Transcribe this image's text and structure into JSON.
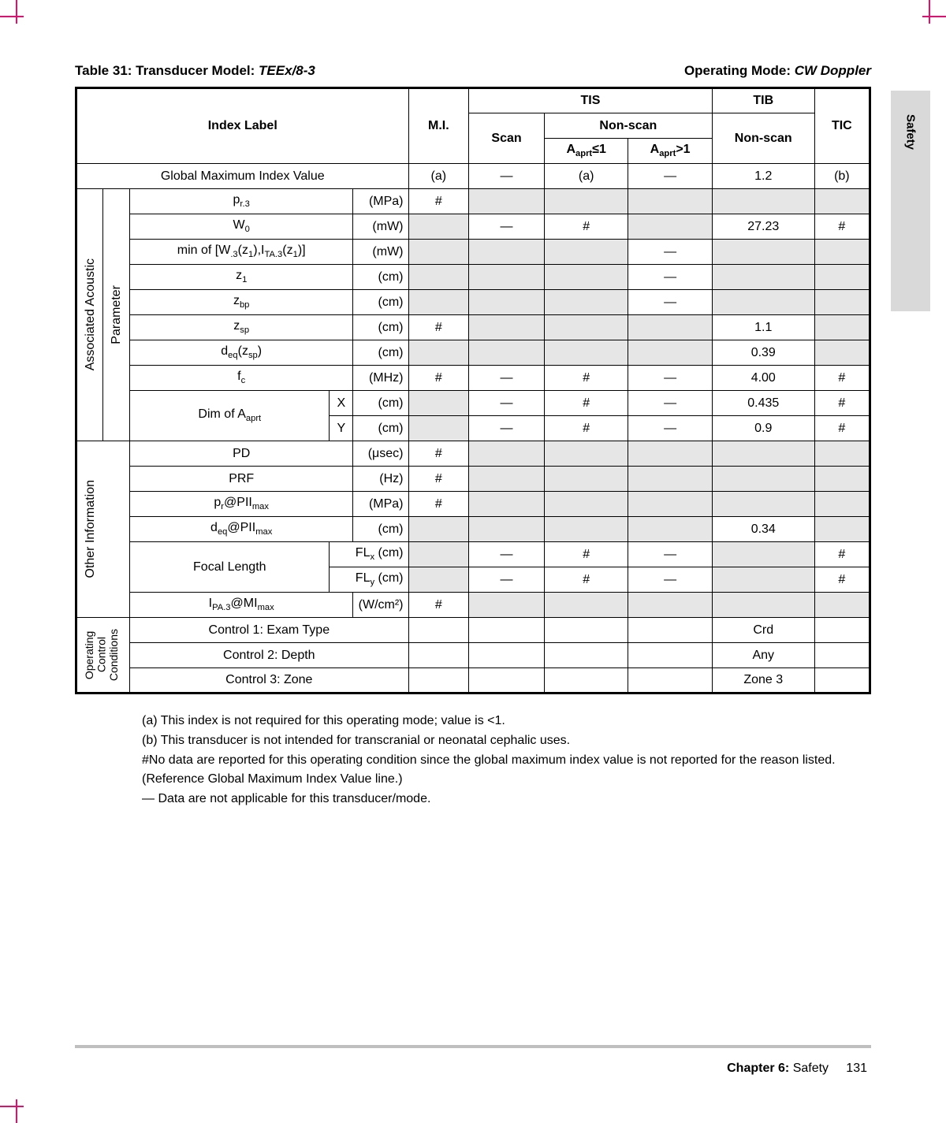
{
  "side_tab": "Safety",
  "title": {
    "table_no": "Table 31: Transducer Model: ",
    "model": "TEEx/8-3",
    "mode_label": "Operating Mode: ",
    "mode": "CW Doppler"
  },
  "headers": {
    "index_label": "Index Label",
    "mi": "M.I.",
    "tis": "TIS",
    "tib": "TIB",
    "tic": "TIC",
    "scan": "Scan",
    "nonscan": "Non-scan",
    "aaprt_le1": "Aaprt≤1",
    "aaprt_gt1": "Aaprt>1"
  },
  "row_global": {
    "label": "Global Maximum Index Value",
    "mi": "(a)",
    "scan": "—",
    "ns1": "(a)",
    "ns2": "—",
    "tib": "1.2",
    "tic": "(b)"
  },
  "group1_label_outer": "Associated Acoustic",
  "group1_label_inner": "Parameter",
  "group1": [
    {
      "label": "p",
      "sub": "r.3",
      "unit": "(MPa)",
      "mi": "#",
      "scan": "",
      "ns1": "",
      "ns2": "",
      "tib": "",
      "tic": "",
      "sh_scan": true,
      "sh_ns1": true,
      "sh_ns2": true,
      "sh_tib": true,
      "sh_tic": true
    },
    {
      "label": "W",
      "sub": "0",
      "unit": "(mW)",
      "mi": "",
      "scan": "—",
      "ns1": "#",
      "ns2": "",
      "tib": "27.23",
      "tic": "#",
      "sh_mi": true,
      "sh_ns2": true
    },
    {
      "label_html": "min of [W<sub>.3</sub>(z<sub>1</sub>),I<sub>TA.3</sub>(z<sub>1</sub>)]",
      "unit": "(mW)",
      "mi": "",
      "scan": "",
      "ns1": "",
      "ns2": "—",
      "tib": "",
      "tic": "",
      "sh_mi": true,
      "sh_scan": true,
      "sh_ns1": true,
      "sh_tib": true,
      "sh_tic": true
    },
    {
      "label": "z",
      "sub": "1",
      "unit": "(cm)",
      "mi": "",
      "scan": "",
      "ns1": "",
      "ns2": "—",
      "tib": "",
      "tic": "",
      "sh_mi": true,
      "sh_scan": true,
      "sh_ns1": true,
      "sh_tib": true,
      "sh_tic": true
    },
    {
      "label": "z",
      "sub": "bp",
      "unit": "(cm)",
      "mi": "",
      "scan": "",
      "ns1": "",
      "ns2": "—",
      "tib": "",
      "tic": "",
      "sh_mi": true,
      "sh_scan": true,
      "sh_ns1": true,
      "sh_tib": true,
      "sh_tic": true
    },
    {
      "label": "z",
      "sub": "sp",
      "unit": "(cm)",
      "mi": "#",
      "scan": "",
      "ns1": "",
      "ns2": "",
      "tib": "1.1",
      "tic": "",
      "sh_scan": true,
      "sh_ns1": true,
      "sh_ns2": true,
      "sh_tic": true
    },
    {
      "label_html": "d<sub>eq</sub>(z<sub>sp</sub>)",
      "unit": "(cm)",
      "mi": "",
      "scan": "",
      "ns1": "",
      "ns2": "",
      "tib": "0.39",
      "tic": "",
      "sh_mi": true,
      "sh_scan": true,
      "sh_ns1": true,
      "sh_ns2": true,
      "sh_tic": true
    },
    {
      "label": "f",
      "sub": "c",
      "unit": "(MHz)",
      "mi": "#",
      "scan": "—",
      "ns1": "#",
      "ns2": "—",
      "tib": "4.00",
      "tic": "#"
    }
  ],
  "dim_row": {
    "label_html": "Dim of A<sub>aprt</sub>",
    "x_label": "X",
    "y_label": "Y",
    "unit": "(cm)",
    "x": {
      "mi": "",
      "scan": "—",
      "ns1": "#",
      "ns2": "—",
      "tib": "0.435",
      "tic": "#",
      "sh_mi": true
    },
    "y": {
      "mi": "",
      "scan": "—",
      "ns1": "#",
      "ns2": "—",
      "tib": "0.9",
      "tic": "#",
      "sh_mi": true
    }
  },
  "group2_label": "Other Information",
  "group2": [
    {
      "label": "PD",
      "unit": "(μsec)",
      "mi": "#",
      "sh_scan": true,
      "sh_ns1": true,
      "sh_ns2": true,
      "sh_tib": true,
      "sh_tic": true
    },
    {
      "label": "PRF",
      "unit": "(Hz)",
      "mi": "#",
      "sh_scan": true,
      "sh_ns1": true,
      "sh_ns2": true,
      "sh_tib": true,
      "sh_tic": true
    },
    {
      "label_html": "p<sub>r</sub>@PII<sub>max</sub>",
      "unit": "(MPa)",
      "mi": "#",
      "sh_scan": true,
      "sh_ns1": true,
      "sh_ns2": true,
      "sh_tib": true,
      "sh_tic": true
    },
    {
      "label_html": "d<sub>eq</sub>@PII<sub>max</sub>",
      "unit": "(cm)",
      "mi": "",
      "tib": "0.34",
      "sh_mi": true,
      "sh_scan": true,
      "sh_ns1": true,
      "sh_ns2": true,
      "sh_tic": true
    }
  ],
  "focal": {
    "label": "Focal Length",
    "flx": "FLx (cm)",
    "fly": "FLy (cm)",
    "x": {
      "scan": "—",
      "ns1": "#",
      "ns2": "—",
      "tic": "#",
      "sh_mi": true,
      "sh_tib": true
    },
    "y": {
      "scan": "—",
      "ns1": "#",
      "ns2": "—",
      "tic": "#",
      "sh_mi": true,
      "sh_tib": true
    }
  },
  "ipa_row": {
    "label_html": "I<sub>PA.3</sub>@MI<sub>max</sub>",
    "unit": "(W/cm²)",
    "mi": "#",
    "sh_scan": true,
    "sh_ns1": true,
    "sh_ns2": true,
    "sh_tib": true,
    "sh_tic": true
  },
  "group3_outer": "Operating",
  "group3_mid": "Control",
  "group3_inner": "Conditions",
  "controls": [
    {
      "label": "Control 1: Exam Type",
      "tib": "Crd"
    },
    {
      "label": "Control 2: Depth",
      "tib": "Any"
    },
    {
      "label": "Control 3: Zone",
      "tib": "Zone 3"
    }
  ],
  "footnotes": [
    "(a) This index is not required for this operating mode; value is <1.",
    "(b) This transducer is not intended for transcranial or neonatal cephalic uses.",
    "#No data are reported for this operating condition since the global maximum index value is not reported for the reason listed. (Reference Global Maximum Index Value line.)",
    "— Data are not applicable for this transducer/mode."
  ],
  "footer": {
    "chapter": "Chapter 6:",
    "name": " Safety",
    "page": "131"
  }
}
